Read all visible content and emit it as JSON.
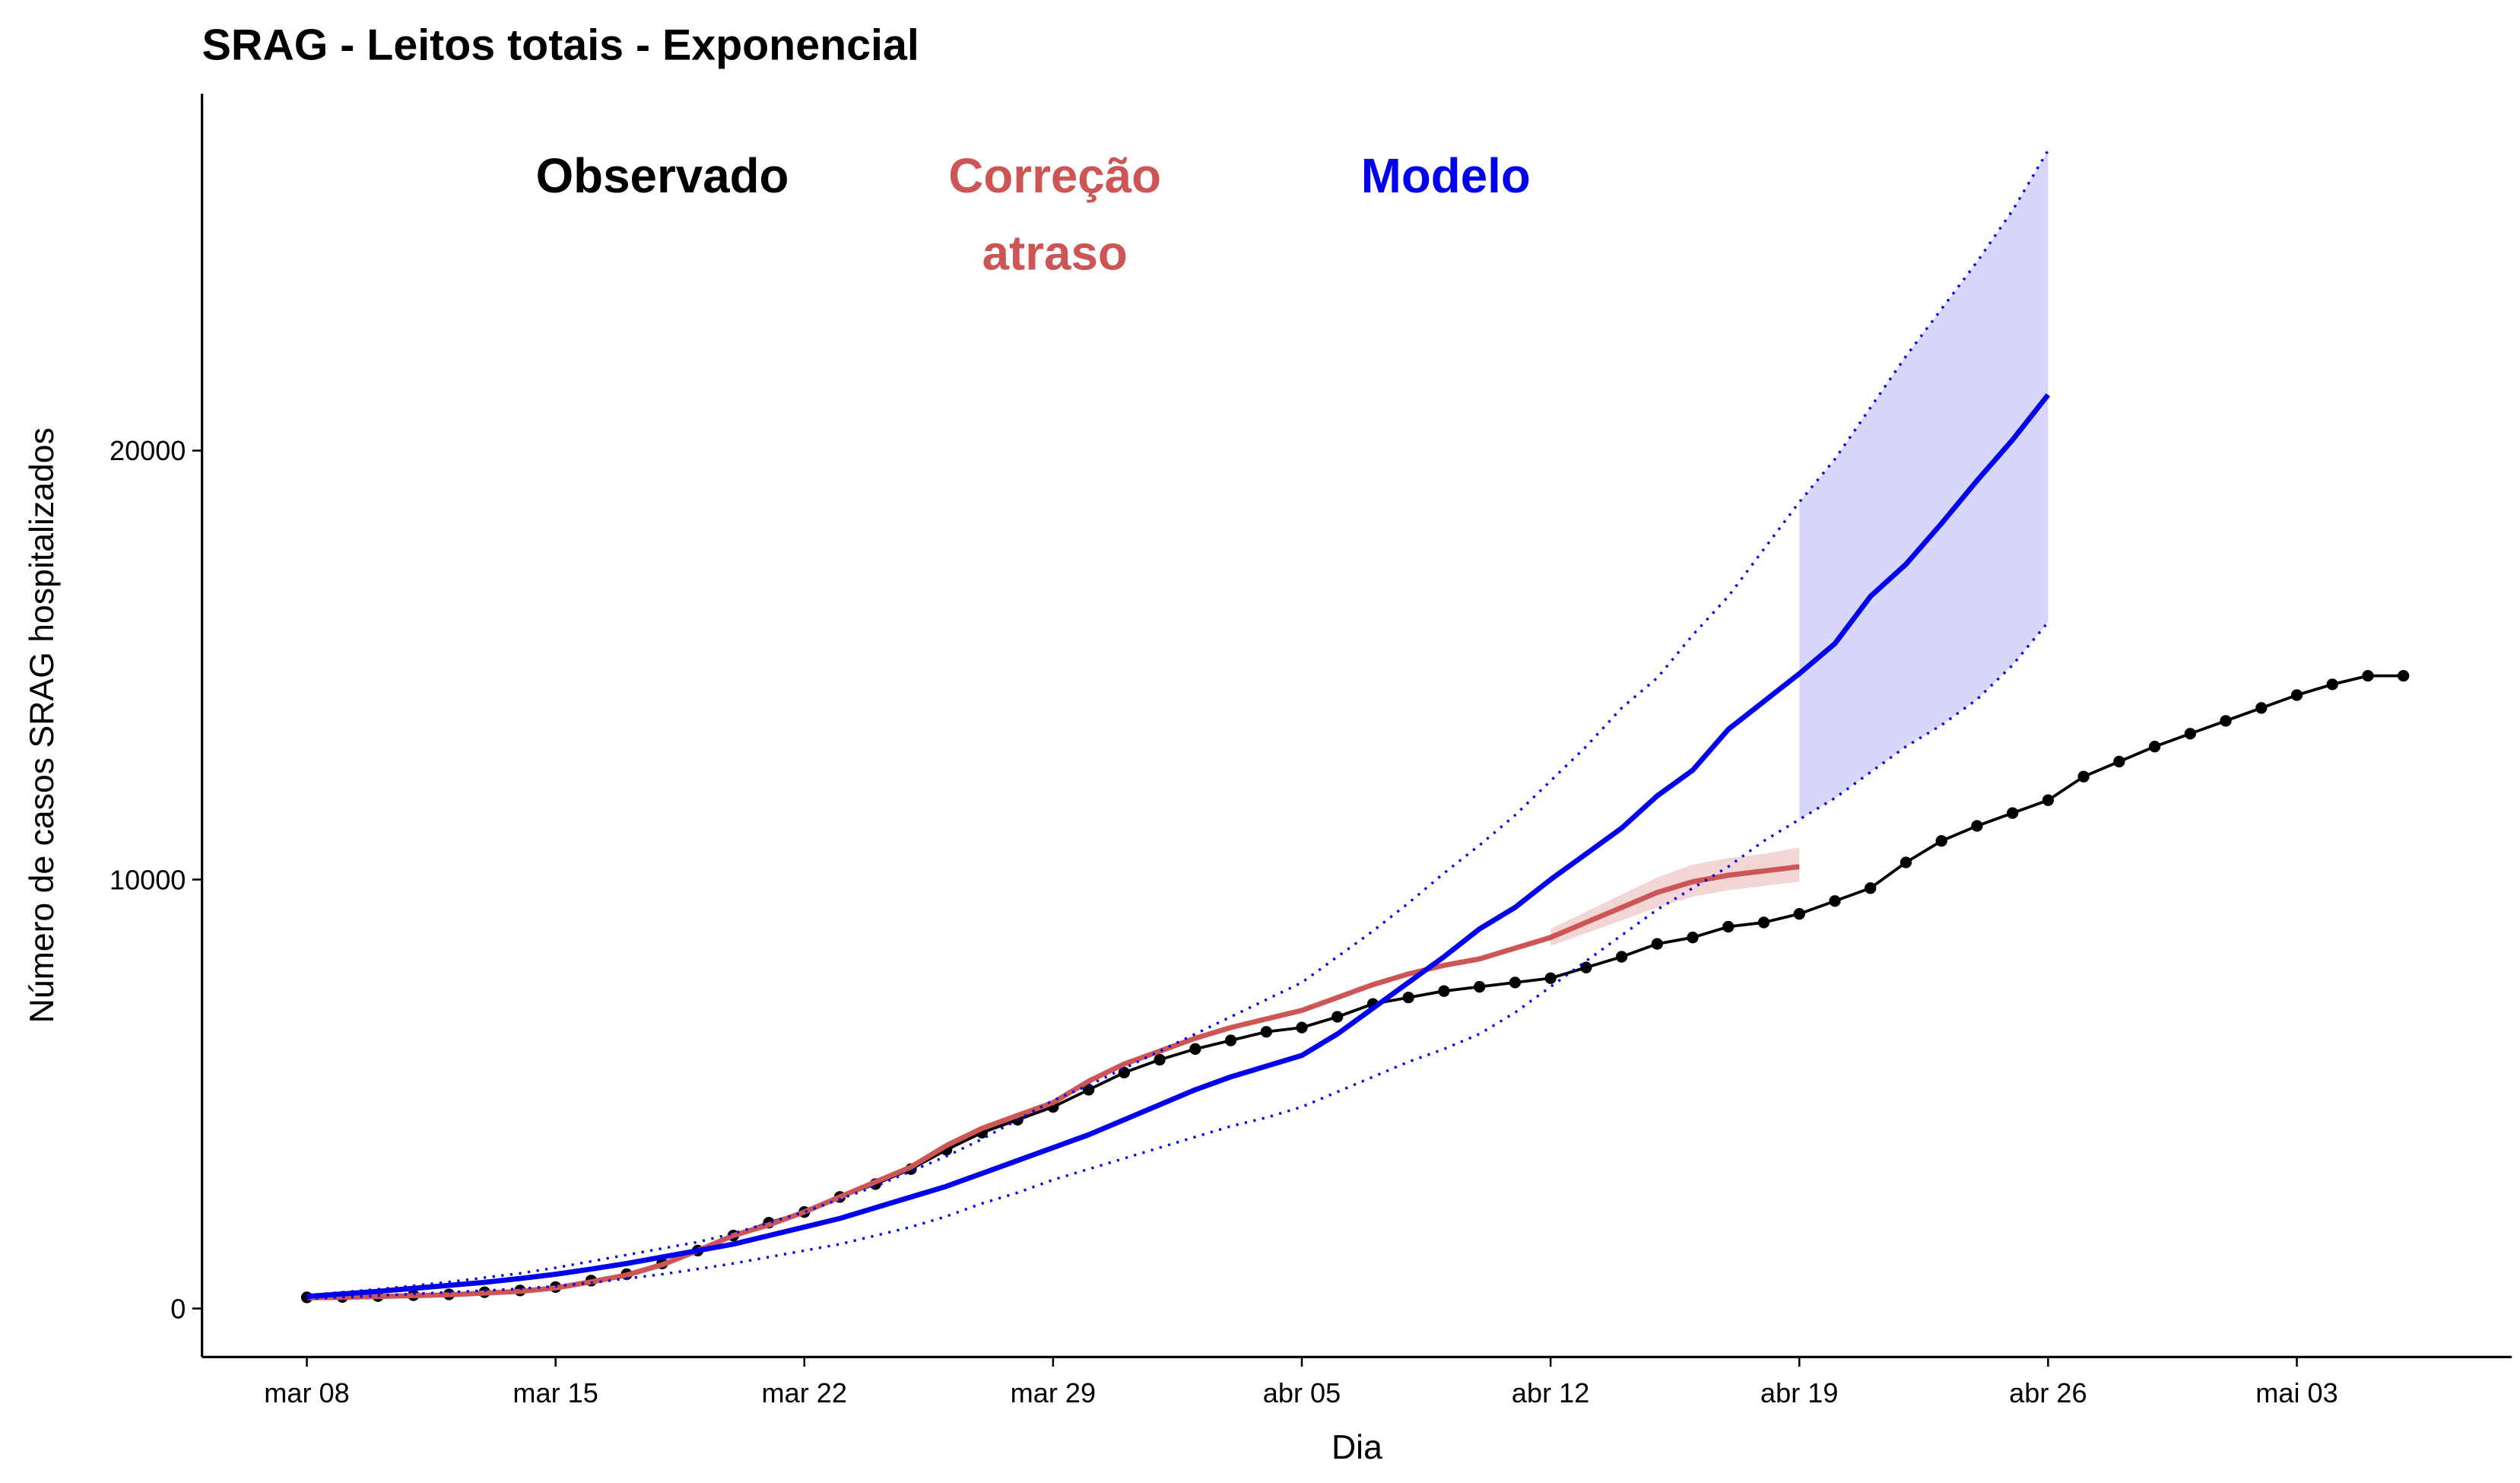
{
  "chart_data": {
    "type": "line",
    "title": "SRAG - Leitos totais - Exponencial",
    "x_label": "Dia",
    "y_label": "Número de casos SRAG hospitalizados",
    "xlim": [
      -2.95,
      62.05
    ],
    "ylim": [
      -1130,
      28320
    ],
    "xticks": [
      {
        "value": 0,
        "label": "mar 08"
      },
      {
        "value": 7,
        "label": "mar 15"
      },
      {
        "value": 14,
        "label": "mar 22"
      },
      {
        "value": 21,
        "label": "mar 29"
      },
      {
        "value": 28,
        "label": "abr 05"
      },
      {
        "value": 35,
        "label": "abr 12"
      },
      {
        "value": 42,
        "label": "abr 19"
      },
      {
        "value": 49,
        "label": "abr 26"
      },
      {
        "value": 56,
        "label": "mai 03"
      }
    ],
    "yticks": [
      0,
      10000,
      20000
    ],
    "grid": false,
    "series": [
      {
        "name": "Observado",
        "color": "#000000",
        "markers": true,
        "x": [
          0,
          1,
          2,
          3,
          4,
          5,
          6,
          7,
          8,
          9,
          10,
          11,
          12,
          13,
          14,
          15,
          16,
          17,
          18,
          19,
          20,
          21,
          22,
          23,
          24,
          25,
          26,
          27,
          28,
          29,
          30,
          31,
          32,
          33,
          34,
          35,
          36,
          37,
          38,
          39,
          40,
          41,
          42,
          43,
          44,
          45,
          46,
          47,
          48,
          49,
          50,
          51,
          52,
          53,
          54,
          55,
          56,
          57,
          58,
          59
        ],
        "values": [
          260,
          270,
          290,
          310,
          330,
          380,
          420,
          500,
          650,
          800,
          1050,
          1350,
          1700,
          2000,
          2250,
          2600,
          2900,
          3250,
          3700,
          4100,
          4400,
          4700,
          5100,
          5500,
          5800,
          6050,
          6250,
          6450,
          6550,
          6800,
          7100,
          7250,
          7400,
          7500,
          7600,
          7700,
          7950,
          8200,
          8500,
          8650,
          8900,
          9000,
          9200,
          9500,
          9800,
          10400,
          10900,
          11250,
          11550,
          11850,
          12400,
          12750,
          13100,
          13400,
          13700,
          14000,
          14300,
          14550,
          14750,
          14750
        ]
      },
      {
        "name": "Correção\natraso",
        "color": "#cd5555",
        "band_color": "#f2d6d6",
        "x": [
          0,
          1,
          2,
          3,
          4,
          5,
          6,
          7,
          8,
          9,
          10,
          11,
          12,
          13,
          14,
          15,
          16,
          17,
          18,
          19,
          20,
          21,
          22,
          23,
          24,
          25,
          26,
          27,
          28,
          29,
          30,
          31,
          32,
          33,
          34,
          35,
          36,
          37,
          38,
          39,
          40,
          41,
          42
        ],
        "values": [
          250,
          260,
          280,
          300,
          320,
          360,
          400,
          480,
          620,
          780,
          1020,
          1350,
          1700,
          1950,
          2250,
          2600,
          2950,
          3300,
          3800,
          4200,
          4500,
          4800,
          5300,
          5700,
          6000,
          6300,
          6550,
          6750,
          6950,
          7250,
          7550,
          7800,
          8000,
          8150,
          8400,
          8650,
          9000,
          9350,
          9700,
          9950,
          10100,
          10200,
          10300
        ],
        "lower": [
          null,
          null,
          null,
          null,
          null,
          null,
          null,
          null,
          null,
          null,
          null,
          null,
          null,
          null,
          null,
          null,
          null,
          null,
          null,
          null,
          null,
          null,
          null,
          null,
          null,
          null,
          null,
          null,
          null,
          null,
          null,
          null,
          null,
          null,
          null,
          8450,
          8750,
          9050,
          9350,
          9600,
          9750,
          9850,
          9950
        ],
        "upper": [
          null,
          null,
          null,
          null,
          null,
          null,
          null,
          null,
          null,
          null,
          null,
          null,
          null,
          null,
          null,
          null,
          null,
          null,
          null,
          null,
          null,
          null,
          null,
          null,
          null,
          null,
          null,
          null,
          null,
          null,
          null,
          null,
          null,
          null,
          null,
          8850,
          9250,
          9650,
          10050,
          10350,
          10500,
          10600,
          10750
        ]
      },
      {
        "name": "Modelo",
        "color": "#0000ee",
        "band_color": "#d7d7fb",
        "bound_style": "dotted",
        "x": [
          0,
          1,
          2,
          3,
          4,
          5,
          6,
          7,
          8,
          9,
          10,
          11,
          12,
          13,
          14,
          15,
          16,
          17,
          18,
          19,
          20,
          21,
          22,
          23,
          24,
          25,
          26,
          27,
          28,
          29,
          30,
          31,
          32,
          33,
          34,
          35,
          36,
          37,
          38,
          39,
          40,
          41,
          42,
          43,
          44,
          45,
          46,
          47,
          48,
          49
        ],
        "values": [
          280,
          340,
          400,
          470,
          540,
          610,
          700,
          800,
          920,
          1050,
          1200,
          1350,
          1500,
          1700,
          1900,
          2100,
          2350,
          2600,
          2850,
          3150,
          3450,
          3750,
          4050,
          4400,
          4750,
          5100,
          5400,
          5650,
          5900,
          6400,
          7000,
          7600,
          8200,
          8850,
          9350,
          10000,
          10600,
          11200,
          11950,
          12550,
          13500,
          14150,
          14800,
          15500,
          16600,
          17350,
          18300,
          19300,
          20250,
          21300
        ],
        "lower": [
          230,
          260,
          300,
          340,
          380,
          420,
          460,
          520,
          600,
          700,
          800,
          920,
          1050,
          1200,
          1350,
          1500,
          1700,
          1900,
          2150,
          2450,
          2700,
          3000,
          3250,
          3500,
          3750,
          4000,
          4250,
          4450,
          4700,
          5050,
          5400,
          5750,
          6050,
          6400,
          6900,
          7500,
          8100,
          8700,
          9300,
          9800,
          10300,
          10900,
          11400,
          11900,
          12500,
          13100,
          13600,
          14200,
          15000,
          16000
        ],
        "upper": [
          310,
          380,
          450,
          530,
          620,
          720,
          820,
          950,
          1100,
          1250,
          1400,
          1550,
          1750,
          2000,
          2250,
          2550,
          2850,
          3200,
          3550,
          3950,
          4400,
          4850,
          5200,
          5600,
          6000,
          6400,
          6800,
          7200,
          7600,
          8200,
          8800,
          9450,
          10150,
          10800,
          11500,
          12300,
          13100,
          14000,
          14700,
          15700,
          16600,
          17700,
          18800,
          19800,
          21000,
          22200,
          23300,
          24400,
          25600,
          27000
        ]
      }
    ]
  }
}
